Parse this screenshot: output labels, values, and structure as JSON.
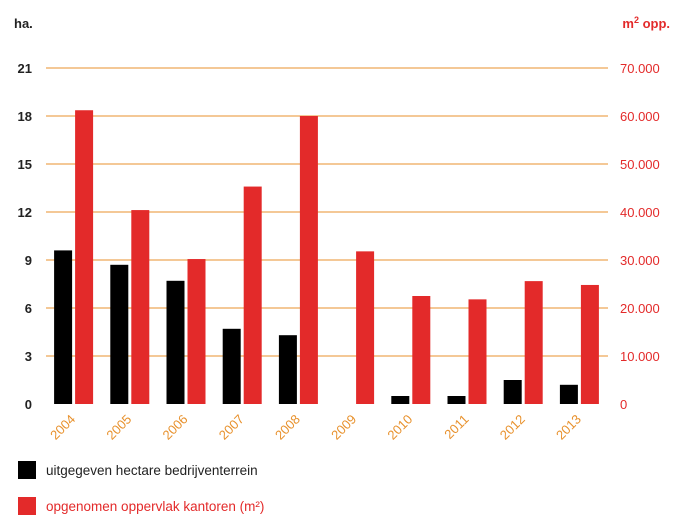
{
  "chart_data": {
    "type": "bar",
    "left_axis_label": "ha.",
    "right_axis_label_main": "m",
    "right_axis_label_sup": "2",
    "right_axis_label_tail": " opp.",
    "categories": [
      "2004",
      "2005",
      "2006",
      "2007",
      "2008",
      "2009",
      "2010",
      "2011",
      "2012",
      "2013"
    ],
    "y_left": {
      "min": 0,
      "max": 21,
      "ticks": [
        "0",
        "3",
        "6",
        "9",
        "12",
        "15",
        "18",
        "21"
      ]
    },
    "y_right": {
      "min": 0,
      "max": 70000,
      "ticks": [
        "0",
        "10.000",
        "20.000",
        "30.000",
        "40.000",
        "50.000",
        "60.000",
        "70.000"
      ]
    },
    "grid": true,
    "series": [
      {
        "name": "uitgegeven hectare bedrijventerrein",
        "axis": "left",
        "color": "#000000",
        "values": [
          9.6,
          8.7,
          7.7,
          4.7,
          4.3,
          0,
          0.5,
          0.5,
          1.5,
          1.2
        ]
      },
      {
        "name": "opgenomen oppervlak kantoren (m²)",
        "axis": "right",
        "color": "#e32a2a",
        "values": [
          61200,
          40400,
          30200,
          45300,
          60000,
          31800,
          22500,
          21800,
          25600,
          24800
        ]
      }
    ],
    "colors": {
      "grid": "#e8912c",
      "year_labels": "#e8912c",
      "right_axis": "#e32a2a",
      "left_axis": "#222222"
    }
  }
}
